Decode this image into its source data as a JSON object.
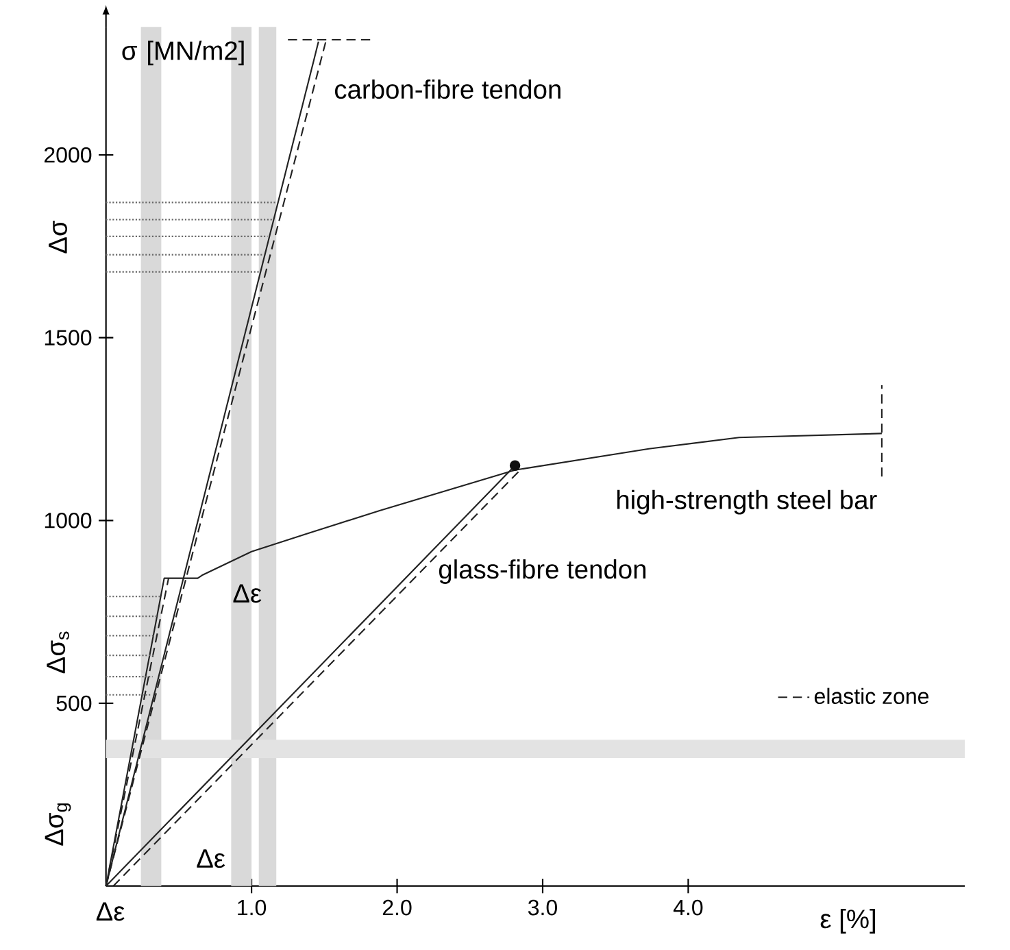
{
  "chart_data": {
    "type": "line",
    "ylabel": "σ [MN/m2]",
    "xlabel": "ε [%]",
    "xlim": [
      0,
      5.9
    ],
    "ylim": [
      0,
      2350
    ],
    "xticks": [
      {
        "value": 1,
        "label": "1.0"
      },
      {
        "value": 2,
        "label": "2.0"
      },
      {
        "value": 3,
        "label": "3.0"
      },
      {
        "value": 4,
        "label": "4.0"
      }
    ],
    "yticks": [
      500,
      1000,
      1500,
      2000
    ],
    "grid": false,
    "legend": "bottom right",
    "series": [
      {
        "color": "#222222",
        "line_style": "solid",
        "x": [
          0,
          1.46
        ],
        "values": [
          0,
          2310
        ]
      },
      {
        "color": "#222222",
        "line_style": "dashed",
        "x": [
          0,
          1.51
        ],
        "values": [
          0,
          2310
        ],
        "name": "elastic zone"
      },
      {
        "color": "#222222",
        "line_style": "dashed",
        "x": [
          1.25,
          1.85
        ],
        "values": [
          2315,
          2315
        ]
      },
      {
        "color": "#222222",
        "line_style": "solid",
        "x": [
          0,
          0.4,
          0.63,
          0.66,
          1.0,
          1.39,
          1.88,
          2.81,
          3.73,
          4.35,
          5.33
        ],
        "values": [
          0,
          842,
          842,
          850,
          915,
          965,
          1027,
          1138,
          1196,
          1227,
          1238
        ]
      },
      {
        "color": "#222222",
        "line_style": "dashed",
        "x": [
          0,
          0.43
        ],
        "values": [
          0,
          842
        ]
      },
      {
        "color": "#222222",
        "line_style": "dashed",
        "x": [
          5.33,
          5.33
        ],
        "values": [
          1120,
          1370
        ]
      },
      {
        "color": "#222222",
        "line_style": "solid",
        "x": [
          0,
          2.81
        ],
        "values": [
          0,
          1150
        ]
      },
      {
        "color": "#222222",
        "line_style": "dashed",
        "x": [
          0.05,
          2.85
        ],
        "values": [
          0,
          1140
        ]
      },
      {
        "type": "scatter",
        "color": "#111111",
        "marker": "circle",
        "x": [
          2.81
        ],
        "values": [
          1150
        ]
      },
      {
        "color": "#666666",
        "line_style": "dotted",
        "x": [
          0,
          1.17
        ],
        "values": [
          1870,
          1870
        ]
      },
      {
        "color": "#666666",
        "line_style": "dotted",
        "x": [
          0,
          1.14
        ],
        "values": [
          1823,
          1823
        ]
      },
      {
        "color": "#666666",
        "line_style": "dotted",
        "x": [
          0,
          1.11
        ],
        "values": [
          1777,
          1777
        ]
      },
      {
        "color": "#666666",
        "line_style": "dotted",
        "x": [
          0,
          1.08
        ],
        "values": [
          1727,
          1727
        ]
      },
      {
        "color": "#666666",
        "line_style": "dotted",
        "x": [
          0,
          1.05
        ],
        "values": [
          1680,
          1680
        ]
      },
      {
        "color": "#666666",
        "line_style": "dotted",
        "x": [
          0,
          0.37
        ],
        "values": [
          792,
          792
        ]
      },
      {
        "color": "#666666",
        "line_style": "dotted",
        "x": [
          0,
          0.35
        ],
        "values": [
          738,
          738
        ]
      },
      {
        "color": "#666666",
        "line_style": "dotted",
        "x": [
          0,
          0.34
        ],
        "values": [
          685,
          685
        ]
      },
      {
        "color": "#666666",
        "line_style": "dotted",
        "x": [
          0,
          0.33
        ],
        "values": [
          631,
          631
        ]
      },
      {
        "color": "#666666",
        "line_style": "dotted",
        "x": [
          0,
          0.32
        ],
        "values": [
          573,
          573
        ]
      },
      {
        "color": "#666666",
        "line_style": "dotted",
        "x": [
          0,
          0.31
        ],
        "values": [
          523,
          523
        ]
      }
    ],
    "bands": [
      {
        "axis": "x",
        "from": 0.24,
        "to": 0.38,
        "color": "#d9d9d9"
      },
      {
        "axis": "x",
        "from": 0.86,
        "to": 1.0,
        "color": "#d9d9d9"
      },
      {
        "axis": "x",
        "from": 1.05,
        "to": 1.17,
        "color": "#d9d9d9"
      },
      {
        "axis": "y",
        "from": 350,
        "to": 400,
        "color": "#e3e3e3"
      }
    ],
    "annotations": [
      "carbon-fibre tendon",
      "high-strength steel bar",
      "glass-fibre tendon",
      "Δε",
      "Δε",
      "Δσ",
      "Δσ$_{s}$",
      "Δσ$_{g}$",
      "Δε"
    ]
  }
}
